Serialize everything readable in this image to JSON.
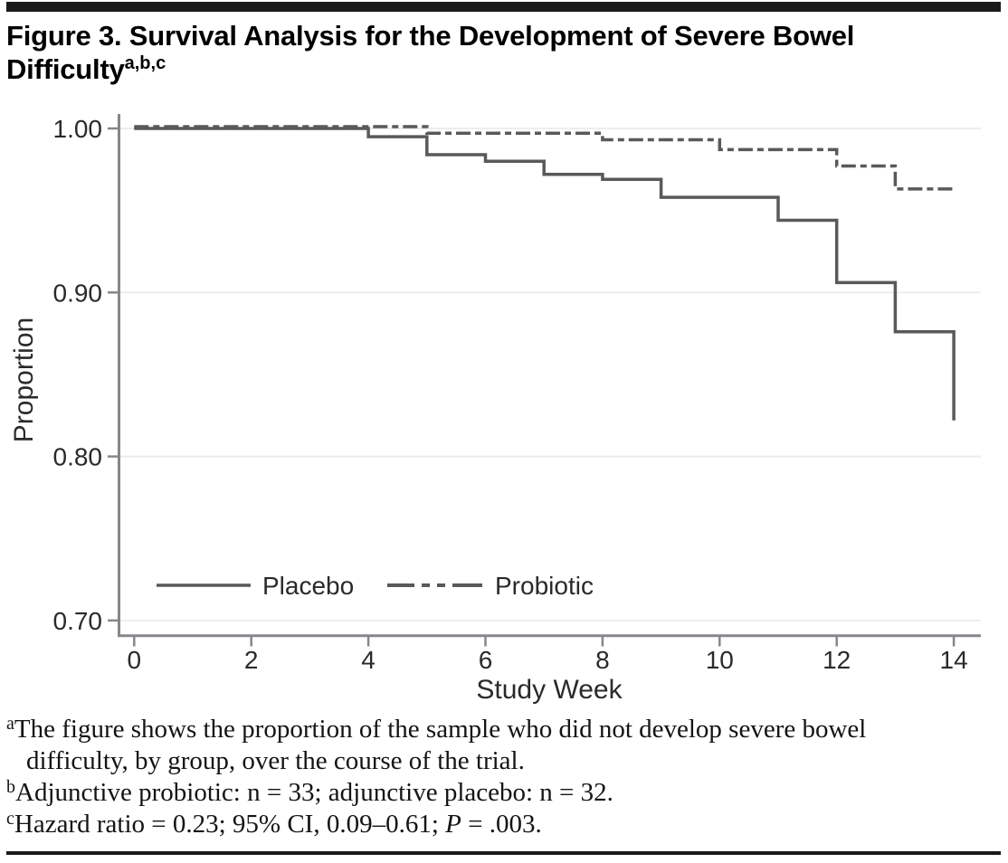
{
  "figure": {
    "title_line1": "Figure 3. Survival Analysis for the Development of Severe Bowel",
    "title_line2": "Difficulty",
    "title_superscript": "a,b,c"
  },
  "chart_data": {
    "type": "line",
    "variant": "kaplan-meier-step-survival",
    "title": "Figure 3. Survival Analysis for the Development of Severe Bowel Difficulty",
    "xlabel": "Study Week",
    "ylabel": "Proportion",
    "xlim": [
      0,
      14
    ],
    "ylim": [
      0.7,
      1.0
    ],
    "grid": "horizontal",
    "legend_position": "inside-bottom-left",
    "x_ticks": [
      {
        "value": 0,
        "label": "0"
      },
      {
        "value": 2,
        "label": "2"
      },
      {
        "value": 4,
        "label": "4"
      },
      {
        "value": 6,
        "label": "6"
      },
      {
        "value": 8,
        "label": "8"
      },
      {
        "value": 10,
        "label": "10"
      },
      {
        "value": 12,
        "label": "12"
      },
      {
        "value": 14,
        "label": "14"
      }
    ],
    "y_ticks": [
      {
        "value": 1.0,
        "label": "1.00"
      },
      {
        "value": 0.9,
        "label": "0.90"
      },
      {
        "value": 0.8,
        "label": "0.80"
      },
      {
        "value": 0.7,
        "label": "0.70"
      }
    ],
    "series": [
      {
        "name": "Placebo",
        "n": 32,
        "line_style": "solid",
        "points": [
          [
            0,
            1.0
          ],
          [
            4,
            1.0
          ],
          [
            4,
            0.995
          ],
          [
            5,
            0.995
          ],
          [
            5,
            0.984
          ],
          [
            6,
            0.984
          ],
          [
            6,
            0.98
          ],
          [
            7,
            0.98
          ],
          [
            7,
            0.972
          ],
          [
            8,
            0.972
          ],
          [
            8,
            0.969
          ],
          [
            9,
            0.969
          ],
          [
            9,
            0.958
          ],
          [
            11,
            0.958
          ],
          [
            11,
            0.944
          ],
          [
            12,
            0.944
          ],
          [
            12,
            0.906
          ],
          [
            13,
            0.906
          ],
          [
            13,
            0.876
          ],
          [
            14,
            0.876
          ],
          [
            14,
            0.822
          ]
        ]
      },
      {
        "name": "Probiotic",
        "n": 33,
        "line_style": "dash-dot",
        "points": [
          [
            0,
            1.0
          ],
          [
            5,
            1.0
          ],
          [
            5,
            0.996
          ],
          [
            8,
            0.996
          ],
          [
            8,
            0.992
          ],
          [
            10,
            0.992
          ],
          [
            10,
            0.986
          ],
          [
            12,
            0.986
          ],
          [
            12,
            0.976
          ],
          [
            13,
            0.976
          ],
          [
            13,
            0.962
          ],
          [
            14.05,
            0.962
          ]
        ]
      }
    ]
  },
  "legend": {
    "items": [
      {
        "label": "Placebo",
        "line_style": "solid"
      },
      {
        "label": "Probiotic",
        "line_style": "dash-dot"
      }
    ]
  },
  "footnotes": {
    "a": {
      "sup": "a",
      "line1": "The figure shows the proportion of the sample who did not develop severe bowel",
      "line2": "difficulty, by group, over the course of the trial."
    },
    "b": {
      "sup": "b",
      "text": "Adjunctive probiotic: n = 33; adjunctive placebo: n = 32."
    },
    "c": {
      "sup": "c",
      "pre": "Hazard ratio = 0.23; 95% CI, 0.09–0.61; ",
      "italic": "P",
      "post": " = .003."
    }
  },
  "colors": {
    "curve": "#58595b",
    "axis": "#85878a",
    "grid": "#ededed",
    "bar": "#1a1a1a",
    "text": "#2b2a2b"
  }
}
